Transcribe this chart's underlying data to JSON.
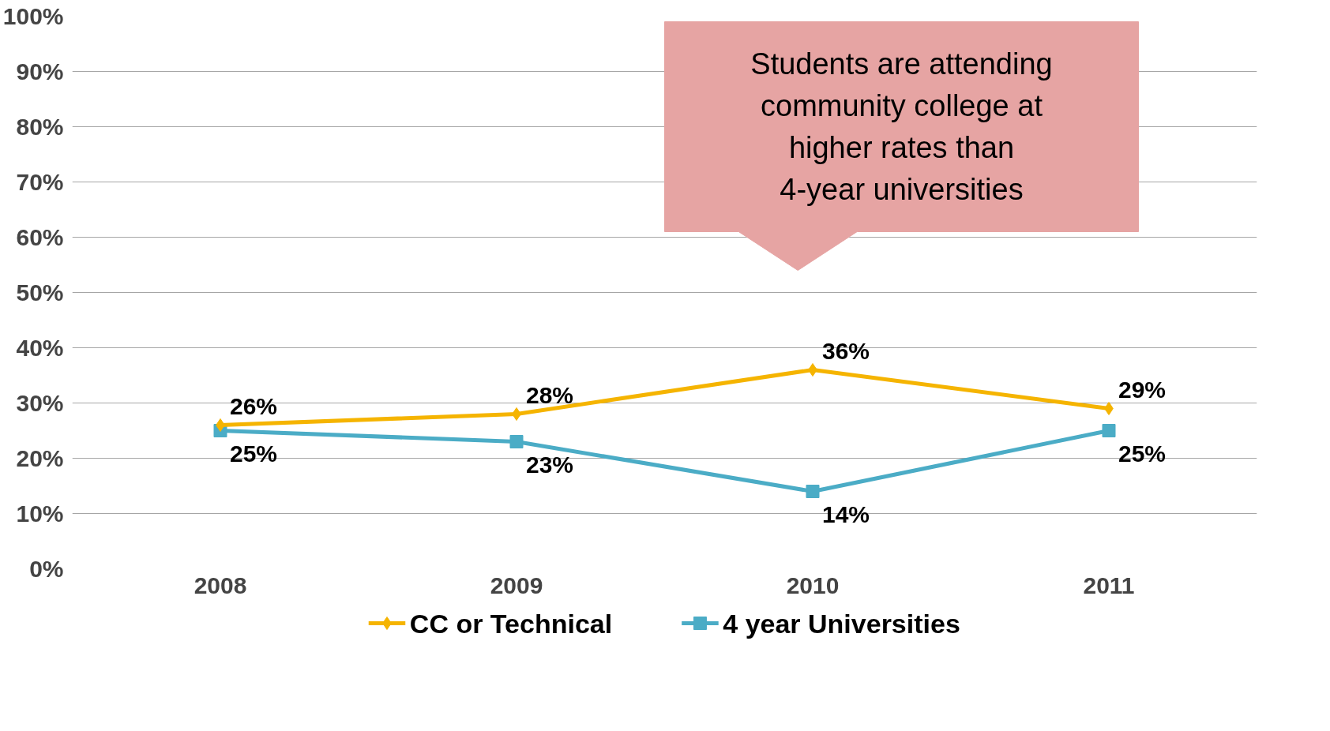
{
  "chart_data": {
    "type": "line",
    "categories": [
      "2008",
      "2009",
      "2010",
      "2011"
    ],
    "series": [
      {
        "name": "CC or Technical",
        "color": "#f5b400",
        "values": [
          26,
          28,
          36,
          29
        ],
        "value_labels": [
          "26%",
          "28%",
          "36%",
          "29%"
        ],
        "marker": "diamond"
      },
      {
        "name": "4 year Universities",
        "color": "#4bacc6",
        "values": [
          25,
          23,
          14,
          25
        ],
        "value_labels": [
          "25%",
          "23%",
          "14%",
          "25%"
        ],
        "marker": "square"
      }
    ],
    "ylim": [
      0,
      100
    ],
    "yticks": [
      {
        "value": 0,
        "label": "0%"
      },
      {
        "value": 10,
        "label": "10%"
      },
      {
        "value": 20,
        "label": "20%"
      },
      {
        "value": 30,
        "label": "30%"
      },
      {
        "value": 40,
        "label": "40%"
      },
      {
        "value": 50,
        "label": "50%"
      },
      {
        "value": 60,
        "label": "60%"
      },
      {
        "value": 70,
        "label": "70%"
      },
      {
        "value": 80,
        "label": "80%"
      },
      {
        "value": 90,
        "label": "90%"
      },
      {
        "value": 100,
        "label": "100%"
      }
    ],
    "grid": "y",
    "legend": "bottom",
    "line_style": "solid",
    "annotations": [
      "Students are attending community college at higher rates than 4-year universities"
    ]
  }
}
